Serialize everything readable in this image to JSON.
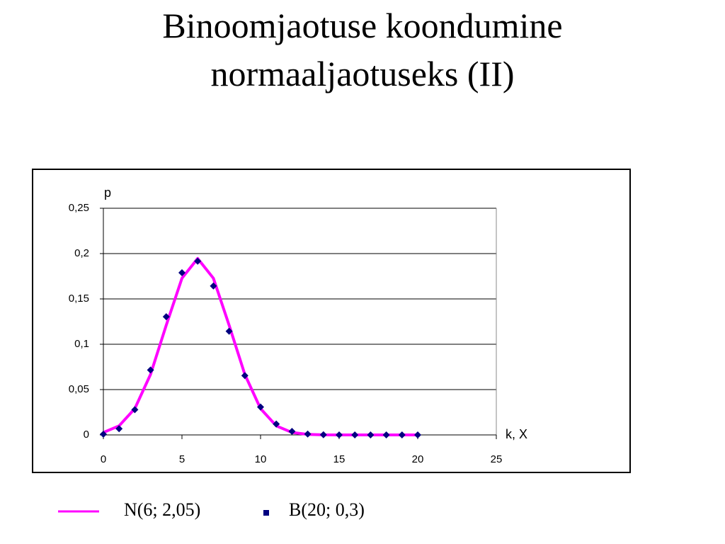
{
  "chart_data": {
    "type": "line",
    "title": "Binoomjaotuse koondumine normaaljaotuseks (II)",
    "y_label": "p",
    "x_label": "k, X",
    "x": [
      0,
      1,
      2,
      3,
      4,
      5,
      6,
      7,
      8,
      9,
      10,
      11,
      12,
      13,
      14,
      15,
      16,
      17,
      18,
      19,
      20
    ],
    "series": [
      {
        "name": "N(6; 2,05)",
        "color": "#ff00ff",
        "marker": "none",
        "values": [
          0.0027,
          0.01,
          0.029,
          0.0667,
          0.121,
          0.1728,
          0.1946,
          0.1728,
          0.121,
          0.0667,
          0.029,
          0.01,
          0.0027,
          0.0006,
          0.0001,
          0,
          0,
          0,
          0,
          0,
          0
        ]
      },
      {
        "name": "B(20; 0,3)",
        "color": "#000080",
        "marker": "diamond",
        "values": [
          0.0008,
          0.0068,
          0.0278,
          0.0716,
          0.1304,
          0.1789,
          0.1916,
          0.1643,
          0.1144,
          0.0654,
          0.0308,
          0.012,
          0.0039,
          0.001,
          0.0002,
          0,
          0,
          0,
          0,
          0,
          0
        ]
      }
    ],
    "xlim": [
      0,
      25
    ],
    "xticks": [
      0,
      5,
      10,
      15,
      20,
      25
    ],
    "ylim": [
      0,
      0.25
    ],
    "yticks": [
      0,
      {
        "value": 0.05,
        "label": "0,05"
      },
      {
        "value": 0.1,
        "label": "0,1"
      },
      {
        "value": 0.15,
        "label": "0,15"
      },
      {
        "value": 0.2,
        "label": "0,2"
      },
      {
        "value": 0.25,
        "label": "0,25"
      }
    ],
    "grid": true
  }
}
